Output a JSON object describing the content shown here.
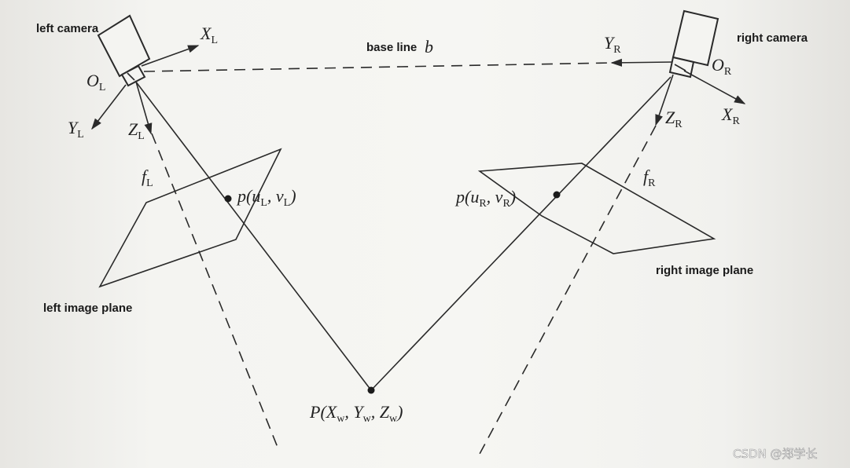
{
  "labels": {
    "left_camera": "left camera",
    "right_camera": "right camera",
    "base_line": "base line",
    "left_image_plane": "left image plane",
    "right_image_plane": "right image plane"
  },
  "math": {
    "baseline_var": "b",
    "x_left": "X",
    "x_left_sub": "L",
    "y_left": "Y",
    "y_left_sub": "L",
    "z_left": "Z",
    "z_left_sub": "L",
    "o_left": "O",
    "o_left_sub": "L",
    "f_left": "f",
    "f_left_sub": "L",
    "x_right": "X",
    "x_right_sub": "R",
    "y_right": "Y",
    "y_right_sub": "R",
    "z_right": "Z",
    "z_right_sub": "R",
    "o_right": "O",
    "o_right_sub": "R",
    "f_right": "f",
    "f_right_sub": "R",
    "p_left": {
      "open": "p(",
      "u": "u",
      "u_sub": "L",
      "sep": ", ",
      "v": "v",
      "v_sub": "L",
      "close": ")"
    },
    "p_right": {
      "open": "p(",
      "u": "u",
      "u_sub": "R",
      "sep": ", ",
      "v": "v",
      "v_sub": "R",
      "close": ")"
    },
    "p_world": {
      "open": "P(",
      "x": "X",
      "x_sub": "w",
      "sep1": ", ",
      "y": "Y",
      "y_sub": "w",
      "sep2": ", ",
      "z": "Z",
      "z_sub": "w",
      "close": ")"
    }
  },
  "watermark": "CSDN @郑学长"
}
